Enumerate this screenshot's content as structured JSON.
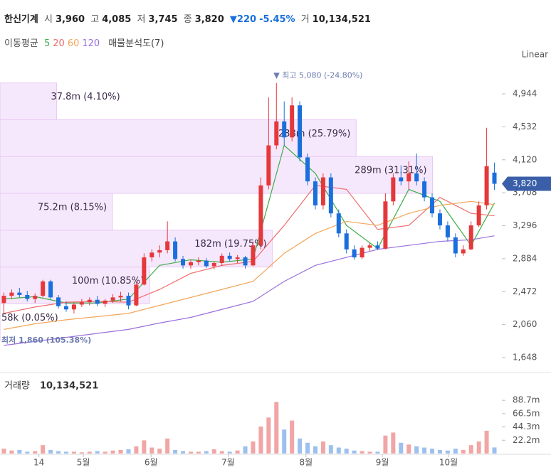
{
  "header": {
    "name": "한신기계",
    "open_label": "시",
    "open": "3,960",
    "high_label": "고",
    "high": "4,085",
    "low_label": "저",
    "low": "3,745",
    "close_label": "종",
    "close": "3,820",
    "change": "▼220",
    "change_pct": "-5.45%",
    "volume_label": "거",
    "volume": "10,134,521"
  },
  "indicators": {
    "label": "이동평균",
    "profile": "매물분석도(7)"
  },
  "chart_data": [
    {
      "type": "candlestick",
      "scale": "Linear",
      "up_color": "#e5383b",
      "down_color": "#1a6fdc",
      "xlim": [
        -0.5,
        63.5
      ],
      "ylim": [
        1497,
        5273
      ],
      "yticks": [
        {
          "value": 1648,
          "label": "1,648"
        },
        {
          "value": 2060,
          "label": "2,060"
        },
        {
          "value": 2472,
          "label": "2,472"
        },
        {
          "value": 2884,
          "label": "2,884"
        },
        {
          "value": 3296,
          "label": "3,296"
        },
        {
          "value": 3708,
          "label": "3,708"
        },
        {
          "value": 4120,
          "label": "4,120"
        },
        {
          "value": 4532,
          "label": "4,532"
        },
        {
          "value": 4944,
          "label": "4,944"
        }
      ],
      "open": [
        2330,
        2420,
        2460,
        2430,
        2380,
        2420,
        2600,
        2400,
        2290,
        2250,
        2310,
        2340,
        2370,
        2320,
        2360,
        2400,
        2420,
        2300,
        2560,
        2900,
        2960,
        2990,
        3100,
        2880,
        2800,
        2840,
        2860,
        2790,
        2830,
        2920,
        2880,
        2900,
        2800,
        3050,
        3800,
        4300,
        4600,
        4400,
        4800,
        4150,
        3850,
        3550,
        3900,
        3450,
        3200,
        3000,
        2900,
        3020,
        3050,
        3010,
        3600,
        3900,
        3850,
        3950,
        3850,
        3650,
        3450,
        3300,
        3150,
        2950,
        3000,
        3300,
        3550,
        3960
      ],
      "high": [
        2460,
        2500,
        2520,
        2480,
        2450,
        2620,
        2620,
        2430,
        2350,
        2330,
        2380,
        2400,
        2420,
        2380,
        2440,
        2470,
        2460,
        2600,
        2950,
        3000,
        3050,
        3350,
        3150,
        2920,
        2870,
        2900,
        2890,
        2850,
        2950,
        2960,
        2930,
        2920,
        3100,
        3900,
        4900,
        5080,
        4850,
        4900,
        4850,
        4200,
        3900,
        3950,
        3950,
        3500,
        3250,
        3050,
        3050,
        3080,
        3100,
        3700,
        3950,
        4050,
        4100,
        4200,
        3900,
        3700,
        3500,
        3350,
        3200,
        3050,
        3350,
        3600,
        4520,
        4085
      ],
      "low": [
        2200,
        2380,
        2400,
        2350,
        2330,
        2400,
        2380,
        2260,
        2220,
        2200,
        2280,
        2300,
        2290,
        2280,
        2330,
        2350,
        2250,
        2290,
        2550,
        2850,
        2900,
        2950,
        2850,
        2760,
        2760,
        2800,
        2770,
        2750,
        2800,
        2850,
        2830,
        2760,
        2790,
        3000,
        3750,
        4250,
        4300,
        4350,
        4100,
        3800,
        3500,
        3500,
        3400,
        3150,
        2950,
        2870,
        2880,
        2980,
        2990,
        3000,
        3550,
        3800,
        3750,
        3800,
        3600,
        3400,
        3250,
        3100,
        2900,
        2920,
        2990,
        3280,
        3500,
        3745
      ],
      "close": [
        2420,
        2460,
        2430,
        2380,
        2420,
        2600,
        2400,
        2290,
        2250,
        2310,
        2340,
        2370,
        2320,
        2360,
        2400,
        2420,
        2300,
        2560,
        2900,
        2960,
        2990,
        3100,
        2880,
        2800,
        2840,
        2860,
        2790,
        2830,
        2920,
        2880,
        2900,
        2800,
        3050,
        3800,
        4300,
        4600,
        4400,
        4800,
        4150,
        3850,
        3550,
        3900,
        3450,
        3200,
        3000,
        2900,
        3020,
        3050,
        3010,
        3600,
        3900,
        3850,
        3950,
        3850,
        3650,
        3450,
        3300,
        3150,
        2950,
        3000,
        3300,
        3550,
        4040,
        3820
      ],
      "ma_series": [
        {
          "name": "5",
          "color": "#3fae49",
          "x": [
            0,
            4,
            8,
            12,
            16,
            20,
            24,
            28,
            32,
            36,
            40,
            44,
            48,
            52,
            56,
            60,
            63
          ],
          "values": [
            2380,
            2410,
            2330,
            2330,
            2380,
            2800,
            2870,
            2840,
            2880,
            4300,
            3950,
            3300,
            3010,
            3750,
            3600,
            3050,
            3580
          ]
        },
        {
          "name": "20",
          "color": "#ef6b6b",
          "x": [
            0,
            4,
            8,
            12,
            16,
            20,
            24,
            28,
            32,
            36,
            40,
            44,
            48,
            52,
            56,
            60,
            63
          ],
          "values": [
            2200,
            2280,
            2340,
            2350,
            2340,
            2500,
            2700,
            2800,
            2850,
            3300,
            3800,
            3750,
            3250,
            3300,
            3650,
            3450,
            3420
          ]
        },
        {
          "name": "60",
          "color": "#f2a65a",
          "x": [
            0,
            4,
            8,
            12,
            16,
            20,
            24,
            28,
            32,
            36,
            40,
            44,
            48,
            52,
            56,
            60,
            63
          ],
          "values": [
            2000,
            2070,
            2120,
            2160,
            2200,
            2300,
            2400,
            2500,
            2600,
            2950,
            3200,
            3350,
            3300,
            3450,
            3550,
            3600,
            3560
          ]
        },
        {
          "name": "120",
          "color": "#9b6fdc",
          "x": [
            0,
            4,
            8,
            12,
            16,
            20,
            24,
            28,
            32,
            36,
            40,
            44,
            48,
            52,
            56,
            60,
            63
          ],
          "values": [
            1800,
            1850,
            1900,
            1950,
            2000,
            2080,
            2150,
            2250,
            2350,
            2600,
            2800,
            2900,
            3000,
            3050,
            3100,
            3120,
            3170
          ]
        }
      ],
      "profile": {
        "color": "#f6e8fc",
        "edge": "#e9c9f5",
        "xlim": [
          0,
          333
        ],
        "bins": [
          1860,
          2320,
          2780,
          3240,
          3700,
          4160,
          4620,
          5080
        ],
        "volumes": [
          0.058,
          100,
          182,
          75.2,
          289,
          238,
          37.8
        ],
        "value_labels": [
          "58k (0.05%)",
          "100m (10.85%)",
          "182m (19.75%)",
          "75.2m (8.15%)",
          "289m (31.31%)",
          "238m (25.79%)",
          "37.8m (4.10%)"
        ]
      },
      "max_label": {
        "index": 35,
        "value": 5080,
        "text": "▼ 최고 5,080 (-24.80%)"
      },
      "min_label": {
        "value": 1860,
        "text": "최저 1,860 (105.38%)"
      },
      "last_price": {
        "value": 3820,
        "label": "3,820",
        "color": "#3a5fa8"
      }
    },
    {
      "type": "bar",
      "title": "거래량",
      "title_value": "10,134,521",
      "up_color": "#f1a5a5",
      "down_color": "#9dc0ee",
      "xlim": [
        -0.5,
        63.5
      ],
      "ylim": [
        0,
        128
      ],
      "yticks": [
        {
          "value": 22.2,
          "label": "22.2m"
        },
        {
          "value": 44.3,
          "label": "44.3m"
        },
        {
          "value": 66.5,
          "label": "66.5m"
        },
        {
          "value": 88.7,
          "label": "88.7m"
        }
      ],
      "xticks": [
        {
          "value": 4.5,
          "label": "14"
        },
        {
          "value": 10.2,
          "label": "5월"
        },
        {
          "value": 18.9,
          "label": "6월"
        },
        {
          "value": 28.8,
          "label": "7월"
        },
        {
          "value": 38.8,
          "label": "8월"
        },
        {
          "value": 48.6,
          "label": "9월"
        },
        {
          "value": 57.1,
          "label": "10월"
        }
      ],
      "values": [
        8,
        5,
        6,
        3,
        4,
        14,
        6,
        4,
        3,
        3,
        2,
        3,
        4,
        3,
        5,
        6,
        7,
        12,
        22,
        10,
        8,
        25,
        6,
        4,
        3,
        3,
        4,
        7,
        4,
        3,
        5,
        12,
        20,
        45,
        60,
        86,
        40,
        55,
        25,
        18,
        12,
        20,
        14,
        10,
        8,
        5,
        4,
        3,
        3,
        30,
        35,
        18,
        15,
        12,
        10,
        8,
        6,
        5,
        8,
        6,
        14,
        20,
        38,
        10.13
      ]
    }
  ]
}
